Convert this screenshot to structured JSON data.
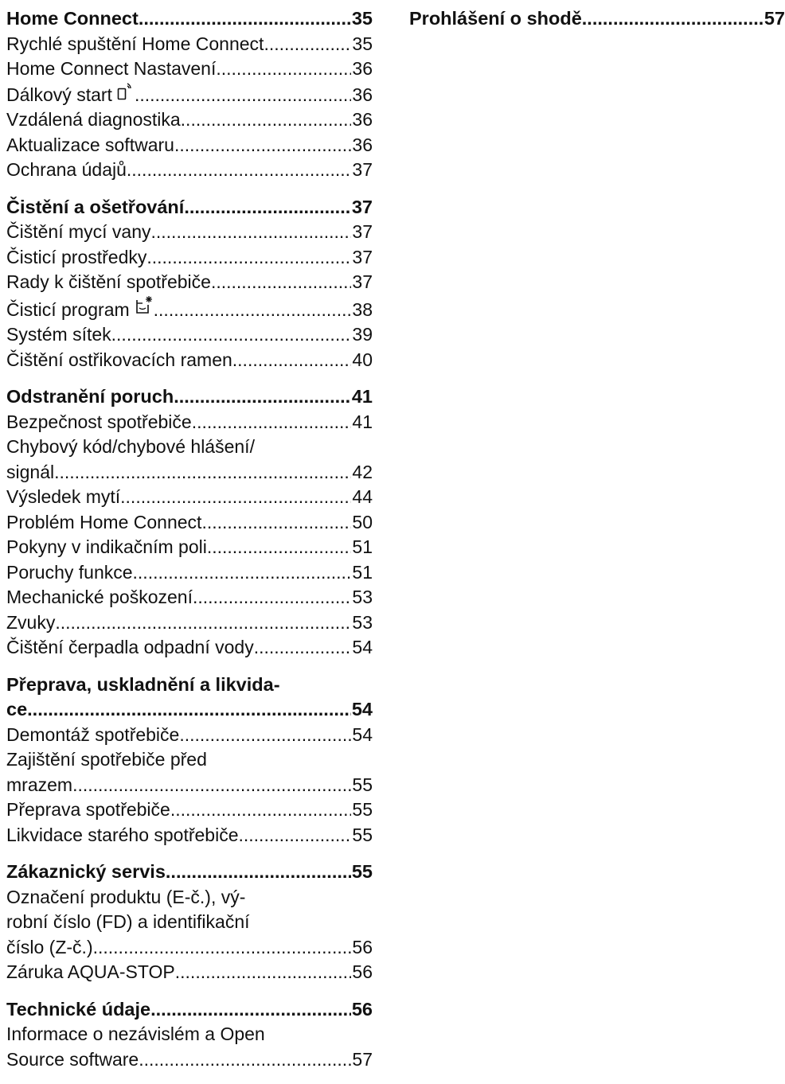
{
  "toc": {
    "left": [
      {
        "heading": {
          "label": "Home Connect",
          "page": "35"
        },
        "items": [
          {
            "label": "Rychlé spuštění Home Connect",
            "page": "35"
          },
          {
            "label": "Home Connect Nastavení",
            "page": "36"
          },
          {
            "label": "Dálkový start",
            "page": "36",
            "icon": "remote-start-icon"
          },
          {
            "label": "Vzdálená diagnostika",
            "page": "36"
          },
          {
            "label": "Aktualizace softwaru",
            "page": "36"
          },
          {
            "label": "Ochrana údajů",
            "page": "37"
          }
        ]
      },
      {
        "heading": {
          "label": "Čistění a ošetřování",
          "page": "37"
        },
        "items": [
          {
            "label": "Čištění mycí vany",
            "page": "37"
          },
          {
            "label": "Čisticí prostředky",
            "page": "37"
          },
          {
            "label": "Rady k čištění spotřebiče",
            "page": "37"
          },
          {
            "label": "Čisticí program",
            "page": "38",
            "icon": "cleaning-program-icon"
          },
          {
            "label": "Systém sítek",
            "page": "39"
          },
          {
            "label": "Čištění ostřikovacích ramen",
            "page": "40"
          }
        ]
      },
      {
        "heading": {
          "label": "Odstranění poruch",
          "page": "41"
        },
        "items": [
          {
            "label": "Bezpečnost spotřebiče",
            "page": "41"
          },
          {
            "label": "Chybový kód/chybové hlášení/",
            "label2": "signál",
            "page": "42"
          },
          {
            "label": "Výsledek mytí",
            "page": "44"
          },
          {
            "label": "Problém Home Connect",
            "page": "50"
          },
          {
            "label": "Pokyny v indikačním poli",
            "page": "51"
          },
          {
            "label": "Poruchy funkce",
            "page": "51"
          },
          {
            "label": "Mechanické poškození",
            "page": "53"
          },
          {
            "label": "Zvuky",
            "page": "53"
          },
          {
            "label": "Čištění čerpadla odpadní vody",
            "page": "54"
          }
        ]
      },
      {
        "heading": {
          "label": "Přeprava, uskladnění a likvida-",
          "label2": "ce",
          "page": "54"
        },
        "items": [
          {
            "label": "Demontáž spotřebiče",
            "page": "54"
          },
          {
            "label": "Zajištění spotřebiče před",
            "label2": "mrazem",
            "page": "55"
          },
          {
            "label": "Přeprava spotřebiče",
            "page": "55"
          },
          {
            "label": "Likvidace starého spotřebiče",
            "page": "55"
          }
        ]
      },
      {
        "heading": {
          "label": "Zákaznický servis",
          "page": "55"
        },
        "items": [
          {
            "label": "Označení produktu (E-č.), vý-",
            "label2": "robní číslo (FD) a identifikační",
            "label3": "číslo (Z-č.)",
            "page": "56"
          },
          {
            "label": "Záruka AQUA-STOP",
            "page": "56"
          }
        ]
      },
      {
        "heading": {
          "label": "Technické údaje",
          "page": "56"
        },
        "items": [
          {
            "label": "Informace o nezávislém a Open",
            "label2": "Source software",
            "page": "57"
          }
        ]
      }
    ],
    "right": [
      {
        "heading": {
          "label": "Prohlášení o shodě",
          "page": "57"
        },
        "items": []
      }
    ]
  }
}
